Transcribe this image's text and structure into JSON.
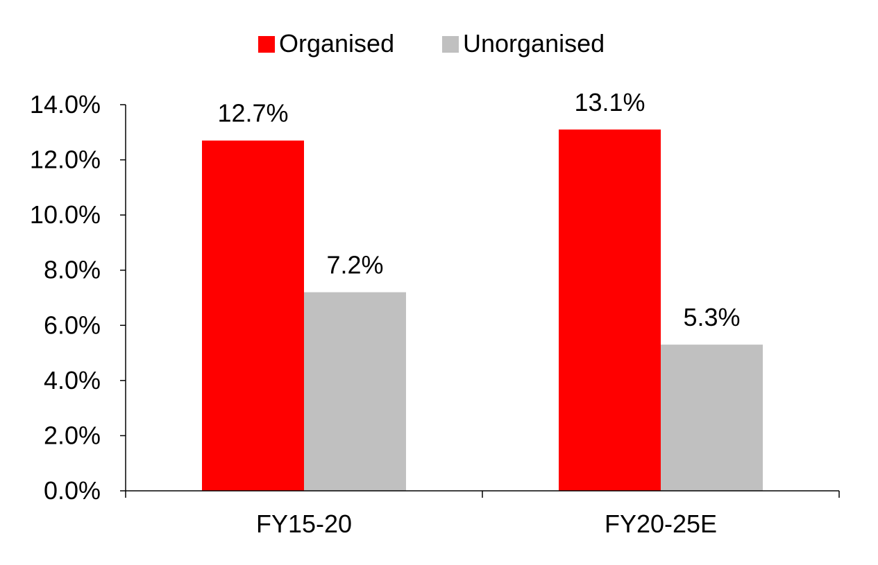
{
  "chart_data": {
    "type": "bar",
    "categories": [
      "FY15-20",
      "FY20-25E"
    ],
    "series": [
      {
        "name": "Organised",
        "values": [
          12.7,
          13.1
        ],
        "color": "#ff0000",
        "labels": [
          "12.7%",
          "13.1%"
        ]
      },
      {
        "name": "Unorganised",
        "values": [
          7.2,
          5.3
        ],
        "color": "#c0c0c0",
        "labels": [
          "7.2%",
          "5.3%"
        ]
      }
    ],
    "ylim": [
      0,
      14
    ],
    "yticks": [
      "0.0%",
      "2.0%",
      "4.0%",
      "6.0%",
      "8.0%",
      "10.0%",
      "12.0%",
      "14.0%"
    ],
    "ytick_values": [
      0,
      2,
      4,
      6,
      8,
      10,
      12,
      14
    ],
    "title": "",
    "xlabel": "",
    "ylabel": "",
    "legend_position": "top-center",
    "grid": false
  }
}
